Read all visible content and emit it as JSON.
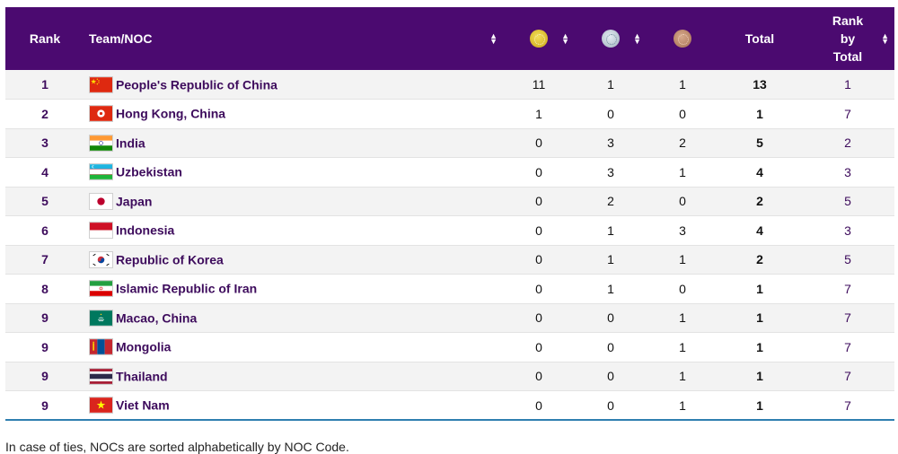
{
  "table": {
    "headers": {
      "rank": "Rank",
      "team": "Team/NOC",
      "gold_icon": "gold-medal-icon",
      "silver_icon": "silver-medal-icon",
      "bronze_icon": "bronze-medal-icon",
      "total": "Total",
      "rank_by_total_1": "Rank",
      "rank_by_total_2": "by",
      "rank_by_total_3": "Total"
    },
    "rows": [
      {
        "rank": "1",
        "team": "People's Republic of China",
        "flag": "china-flag-icon",
        "gold": "11",
        "silver": "1",
        "bronze": "1",
        "total": "13",
        "rank_by_total": "1"
      },
      {
        "rank": "2",
        "team": "Hong Kong, China",
        "flag": "hong-kong-flag-icon",
        "gold": "1",
        "silver": "0",
        "bronze": "0",
        "total": "1",
        "rank_by_total": "7"
      },
      {
        "rank": "3",
        "team": "India",
        "flag": "india-flag-icon",
        "gold": "0",
        "silver": "3",
        "bronze": "2",
        "total": "5",
        "rank_by_total": "2"
      },
      {
        "rank": "4",
        "team": "Uzbekistan",
        "flag": "uzbekistan-flag-icon",
        "gold": "0",
        "silver": "3",
        "bronze": "1",
        "total": "4",
        "rank_by_total": "3"
      },
      {
        "rank": "5",
        "team": "Japan",
        "flag": "japan-flag-icon",
        "gold": "0",
        "silver": "2",
        "bronze": "0",
        "total": "2",
        "rank_by_total": "5"
      },
      {
        "rank": "6",
        "team": "Indonesia",
        "flag": "indonesia-flag-icon",
        "gold": "0",
        "silver": "1",
        "bronze": "3",
        "total": "4",
        "rank_by_total": "3"
      },
      {
        "rank": "7",
        "team": "Republic of Korea",
        "flag": "korea-flag-icon",
        "gold": "0",
        "silver": "1",
        "bronze": "1",
        "total": "2",
        "rank_by_total": "5"
      },
      {
        "rank": "8",
        "team": "Islamic Republic of Iran",
        "flag": "iran-flag-icon",
        "gold": "0",
        "silver": "1",
        "bronze": "0",
        "total": "1",
        "rank_by_total": "7"
      },
      {
        "rank": "9",
        "team": "Macao, China",
        "flag": "macao-flag-icon",
        "gold": "0",
        "silver": "0",
        "bronze": "1",
        "total": "1",
        "rank_by_total": "7"
      },
      {
        "rank": "9",
        "team": "Mongolia",
        "flag": "mongolia-flag-icon",
        "gold": "0",
        "silver": "0",
        "bronze": "1",
        "total": "1",
        "rank_by_total": "7"
      },
      {
        "rank": "9",
        "team": "Thailand",
        "flag": "thailand-flag-icon",
        "gold": "0",
        "silver": "0",
        "bronze": "1",
        "total": "1",
        "rank_by_total": "7"
      },
      {
        "rank": "9",
        "team": "Viet Nam",
        "flag": "viet-nam-flag-icon",
        "gold": "0",
        "silver": "0",
        "bronze": "1",
        "total": "1",
        "rank_by_total": "7"
      }
    ]
  },
  "footnote": "In case of ties, NOCs are sorted alphabetically by NOC Code.",
  "colors": {
    "header_bg": "#4b0a70",
    "link": "#3d0b5c",
    "row_stripe": "#f3f3f3",
    "bottom_rule": "#2f7fb0"
  }
}
